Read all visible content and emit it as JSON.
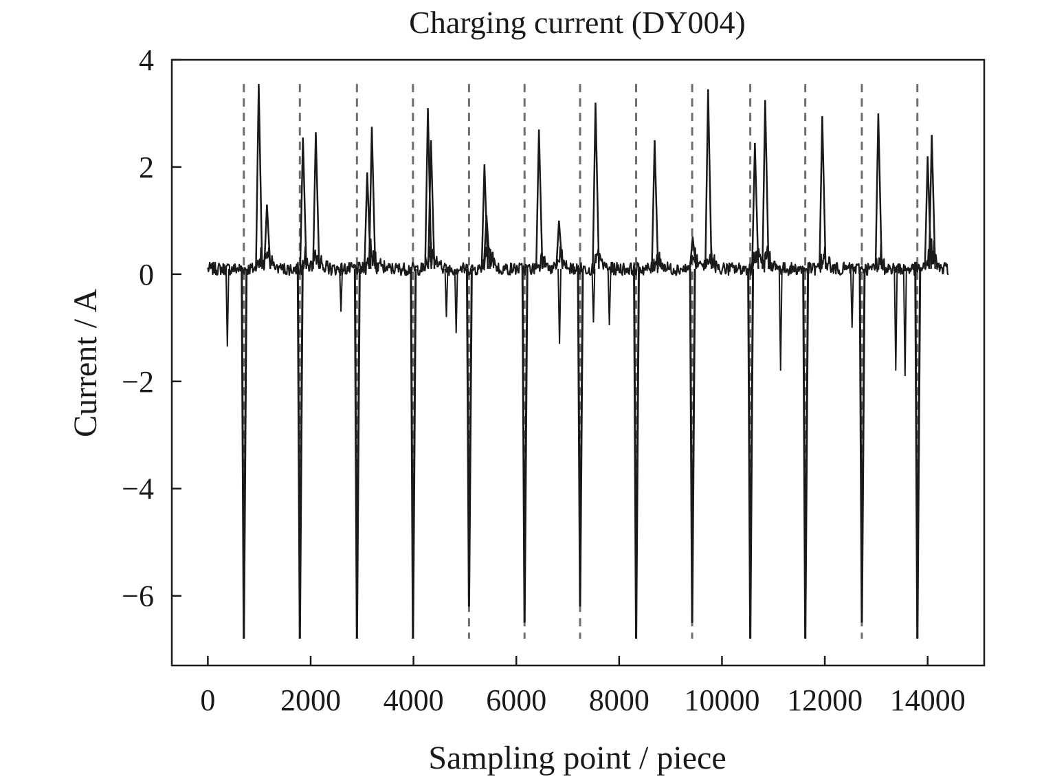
{
  "chart_data": {
    "type": "line",
    "title": "Charging current (DY004)",
    "xlabel": "Sampling point / piece",
    "ylabel": "Current / A",
    "xlim": [
      -700,
      15100
    ],
    "ylim": [
      -7.3,
      4
    ],
    "x_ticks": [
      0,
      2000,
      4000,
      6000,
      8000,
      10000,
      12000,
      14000
    ],
    "y_ticks": [
      4,
      2,
      0,
      -2,
      -4,
      -6
    ],
    "y_tick_labels": [
      "4",
      "2",
      "0",
      "−2",
      "−4",
      "−6"
    ],
    "grid": false,
    "legend": "none",
    "series_color": "#1a1a1a",
    "marker_color": "#6e6e6e",
    "series": [
      {
        "x_range": [
          0,
          14400
        ],
        "baseline": 0.1,
        "noise_amplitude": 0.12,
        "negative_spikes": [
          {
            "x": 700,
            "y": -6.8
          },
          {
            "x": 1790,
            "y": -6.8
          },
          {
            "x": 2900,
            "y": -6.8
          },
          {
            "x": 3990,
            "y": -6.8
          },
          {
            "x": 5080,
            "y": -6.2
          },
          {
            "x": 6160,
            "y": -6.5
          },
          {
            "x": 7240,
            "y": -6.2
          },
          {
            "x": 8330,
            "y": -6.8
          },
          {
            "x": 9420,
            "y": -6.5
          },
          {
            "x": 10550,
            "y": -6.8
          },
          {
            "x": 11620,
            "y": -6.8
          },
          {
            "x": 12720,
            "y": -6.5
          },
          {
            "x": 13800,
            "y": -6.8
          }
        ],
        "positive_spikes": [
          {
            "x": 990,
            "y": 3.55
          },
          {
            "x": 1150,
            "y": 1.3
          },
          {
            "x": 1850,
            "y": 2.55
          },
          {
            "x": 2100,
            "y": 2.65
          },
          {
            "x": 3100,
            "y": 1.9
          },
          {
            "x": 3190,
            "y": 2.75
          },
          {
            "x": 4280,
            "y": 3.1
          },
          {
            "x": 4340,
            "y": 2.5
          },
          {
            "x": 5380,
            "y": 2.05
          },
          {
            "x": 5420,
            "y": 1.1
          },
          {
            "x": 6440,
            "y": 2.7
          },
          {
            "x": 6830,
            "y": 1.0
          },
          {
            "x": 7540,
            "y": 3.2
          },
          {
            "x": 8690,
            "y": 2.5
          },
          {
            "x": 9430,
            "y": 0.7
          },
          {
            "x": 9730,
            "y": 3.45
          },
          {
            "x": 10640,
            "y": 2.45
          },
          {
            "x": 10840,
            "y": 3.25
          },
          {
            "x": 11950,
            "y": 2.95
          },
          {
            "x": 13040,
            "y": 3.0
          },
          {
            "x": 14000,
            "y": 2.2
          },
          {
            "x": 14080,
            "y": 2.6
          }
        ],
        "minor_negative_spikes": [
          {
            "x": 380,
            "y": -1.35
          },
          {
            "x": 2590,
            "y": -0.7
          },
          {
            "x": 4640,
            "y": -0.8
          },
          {
            "x": 4830,
            "y": -1.1
          },
          {
            "x": 6840,
            "y": -1.3
          },
          {
            "x": 7500,
            "y": -0.9
          },
          {
            "x": 7810,
            "y": -0.95
          },
          {
            "x": 11140,
            "y": -1.8
          },
          {
            "x": 12530,
            "y": -1.0
          },
          {
            "x": 13380,
            "y": -1.8
          },
          {
            "x": 13560,
            "y": -1.9
          }
        ]
      }
    ],
    "vertical_dashed_markers": [
      700,
      1790,
      2900,
      3990,
      5080,
      6160,
      7240,
      8330,
      9420,
      10550,
      11620,
      12720,
      13800
    ],
    "marker_y_range": [
      -6.8,
      3.55
    ]
  }
}
